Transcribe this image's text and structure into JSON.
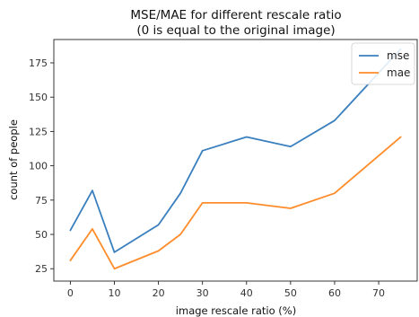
{
  "chart_data": {
    "type": "line",
    "title": "MSE/MAE for different rescale ratio",
    "subtitle": "(0 is equal to the original image)",
    "xlabel": "image rescale ratio (%)",
    "ylabel": "count of people",
    "xlim": [
      -3.75,
      78.75
    ],
    "ylim": [
      16,
      192
    ],
    "xticks": [
      0,
      10,
      20,
      30,
      40,
      50,
      60,
      70
    ],
    "yticks": [
      25,
      50,
      75,
      100,
      125,
      150,
      175
    ],
    "grid": false,
    "legend_position": "top-right",
    "series": [
      {
        "name": "mse",
        "color": "#3a7fbe",
        "x": [
          0,
          5,
          10,
          20,
          25,
          30,
          40,
          50,
          60,
          75
        ],
        "y": [
          53,
          82,
          37,
          57,
          80,
          111,
          121,
          114,
          133,
          185
        ]
      },
      {
        "name": "mae",
        "color": "#ff8c2a",
        "x": [
          0,
          5,
          10,
          20,
          25,
          30,
          40,
          50,
          60,
          75
        ],
        "y": [
          31,
          54,
          25,
          38,
          50,
          73,
          73,
          69,
          80,
          121
        ]
      }
    ]
  }
}
